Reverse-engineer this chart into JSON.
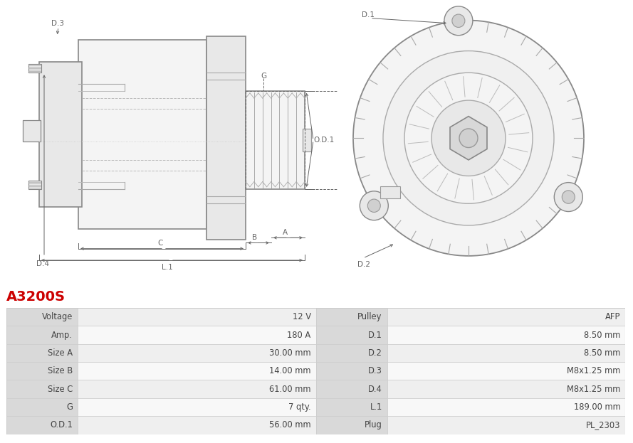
{
  "title": "A3200S",
  "title_color": "#cc0000",
  "title_fontsize": 14,
  "table_rows": [
    [
      "Voltage",
      "12 V",
      "Pulley",
      "AFP"
    ],
    [
      "Amp.",
      "180 A",
      "D.1",
      "8.50 mm"
    ],
    [
      "Size A",
      "30.00 mm",
      "D.2",
      "8.50 mm"
    ],
    [
      "Size B",
      "14.00 mm",
      "D.3",
      "M8x1.25 mm"
    ],
    [
      "Size C",
      "61.00 mm",
      "D.4",
      "M8x1.25 mm"
    ],
    [
      "G",
      "7 qty.",
      "L.1",
      "189.00 mm"
    ],
    [
      "O.D.1",
      "56.00 mm",
      "Plug",
      "PL_2303"
    ]
  ],
  "label_col_bg": "#d9d9d9",
  "value_col_bg_odd": "#efefef",
  "value_col_bg_even": "#f8f8f8",
  "border_color": "#cccccc",
  "cell_text_color": "#444444",
  "background_color": "#ffffff",
  "dim_color": "#666666",
  "line_color": "#888888",
  "light_fill": "#f4f4f4",
  "mid_fill": "#e8e8e8",
  "dark_fill": "#d8d8d8"
}
